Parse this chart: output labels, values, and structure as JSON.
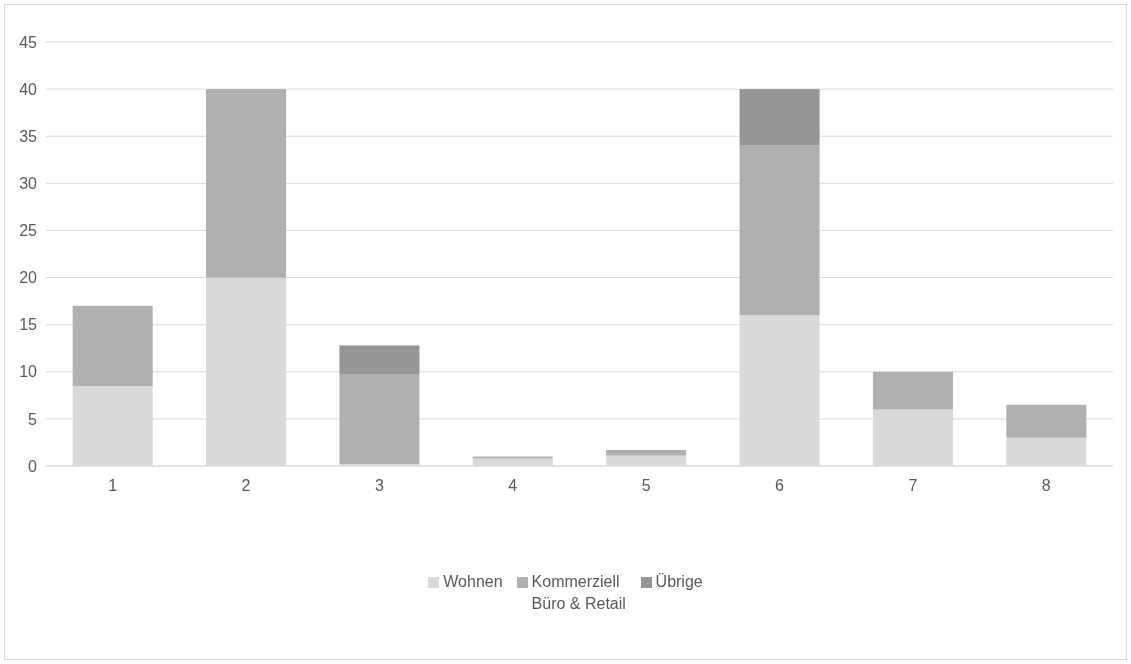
{
  "chart_data": {
    "type": "bar",
    "stacked": true,
    "categories": [
      "1",
      "2",
      "3",
      "4",
      "5",
      "6",
      "7",
      "8"
    ],
    "series": [
      {
        "name": "Wohnen",
        "color": "#d9d9d9",
        "values": [
          8.5,
          20,
          0.2,
          0.8,
          1.1,
          16,
          6,
          3
        ]
      },
      {
        "name": "Kommerziell Büro & Retail",
        "color": "#b0b0b0",
        "values": [
          8.5,
          20,
          9.5,
          0.2,
          0.6,
          18,
          4,
          3.5
        ]
      },
      {
        "name": "Übrige",
        "color": "#969696",
        "values": [
          null,
          null,
          3.1,
          null,
          null,
          6,
          null,
          null
        ]
      }
    ],
    "ylim": [
      0,
      45
    ],
    "yticks": [
      0,
      5,
      10,
      15,
      20,
      25,
      30,
      35,
      40,
      45
    ],
    "grid": "y",
    "legend": "bottom"
  }
}
